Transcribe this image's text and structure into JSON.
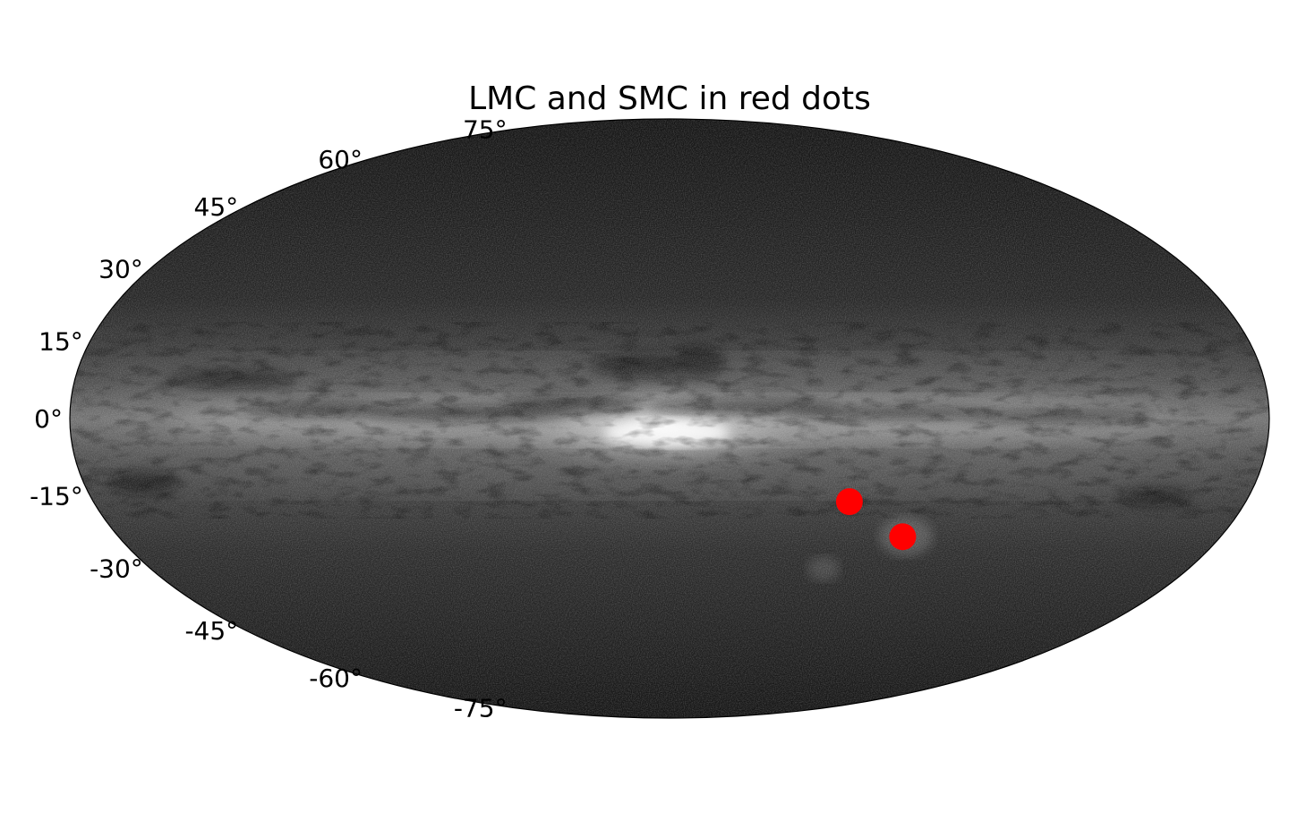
{
  "chart_data": {
    "type": "scatter",
    "projection": "aitoff",
    "title": "LMC and SMC in red dots",
    "background_image": "Gaia all-sky map (Milky Way, galactic coordinates)",
    "y_ticks": [
      {
        "value": 75,
        "label": "75°"
      },
      {
        "value": 60,
        "label": "60°"
      },
      {
        "value": 45,
        "label": "45°"
      },
      {
        "value": 30,
        "label": "30°"
      },
      {
        "value": 15,
        "label": "15°"
      },
      {
        "value": 0,
        "label": "0°"
      },
      {
        "value": -15,
        "label": "-15°"
      },
      {
        "value": -30,
        "label": "-30°"
      },
      {
        "value": -45,
        "label": "-45°"
      },
      {
        "value": -60,
        "label": "-60°"
      },
      {
        "value": -75,
        "label": "-75°"
      }
    ],
    "x_range": [
      -180,
      180
    ],
    "y_range": [
      -90,
      90
    ],
    "grid": false,
    "series": [
      {
        "color": "#ff0000",
        "points": [
          {
            "l": -79.5,
            "b": -33.0
          },
          {
            "l": -57.5,
            "b": -24.0
          }
        ]
      }
    ]
  }
}
